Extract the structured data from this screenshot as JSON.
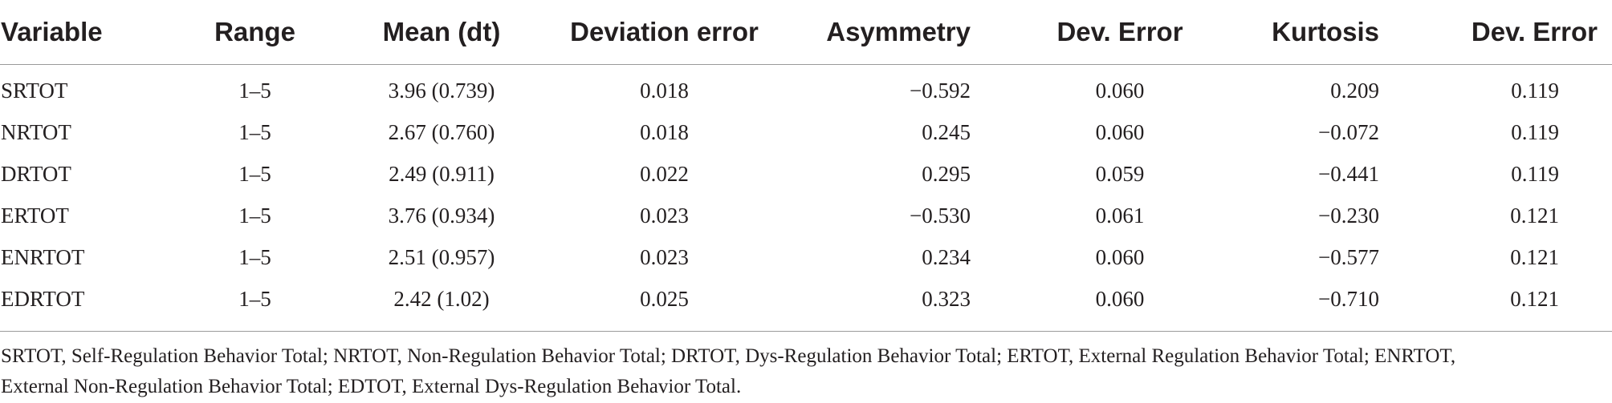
{
  "table": {
    "headers": {
      "variable": "Variable",
      "range": "Range",
      "mean": "Mean (dt)",
      "deviation_error": "Deviation error",
      "asymmetry": "Asymmetry",
      "dev_error_1": "Dev. Error",
      "kurtosis": "Kurtosis",
      "dev_error_2": "Dev. Error"
    },
    "rows": [
      {
        "variable": "SRTOT",
        "range": "1–5",
        "mean": "3.96 (0.739)",
        "deviation_error": "0.018",
        "asymmetry": "−0.592",
        "dev_error_1": "0.060",
        "kurtosis": "0.209",
        "dev_error_2": "0.119"
      },
      {
        "variable": "NRTOT",
        "range": "1–5",
        "mean": "2.67 (0.760)",
        "deviation_error": "0.018",
        "asymmetry": "0.245",
        "dev_error_1": "0.060",
        "kurtosis": "−0.072",
        "dev_error_2": "0.119"
      },
      {
        "variable": "DRTOT",
        "range": "1–5",
        "mean": "2.49 (0.911)",
        "deviation_error": "0.022",
        "asymmetry": "0.295",
        "dev_error_1": "0.059",
        "kurtosis": "−0.441",
        "dev_error_2": "0.119"
      },
      {
        "variable": "ERTOT",
        "range": "1–5",
        "mean": "3.76 (0.934)",
        "deviation_error": "0.023",
        "asymmetry": "−0.530",
        "dev_error_1": "0.061",
        "kurtosis": "−0.230",
        "dev_error_2": "0.121"
      },
      {
        "variable": "ENRTOT",
        "range": "1–5",
        "mean": "2.51 (0.957)",
        "deviation_error": "0.023",
        "asymmetry": "0.234",
        "dev_error_1": "0.060",
        "kurtosis": "−0.577",
        "dev_error_2": "0.121"
      },
      {
        "variable": "EDRTOT",
        "range": "1–5",
        "mean": "2.42 (1.02)",
        "deviation_error": "0.025",
        "asymmetry": "0.323",
        "dev_error_1": "0.060",
        "kurtosis": "−0.710",
        "dev_error_2": "0.121"
      }
    ]
  },
  "footnote": {
    "line1": "SRTOT, Self-Regulation Behavior Total; NRTOT, Non-Regulation Behavior Total; DRTOT, Dys-Regulation Behavior Total; ERTOT, External Regulation Behavior Total; ENRTOT,",
    "line2": "External Non-Regulation Behavior Total; EDTOT, External Dys-Regulation Behavior Total."
  },
  "colors": {
    "text": "#231f20",
    "rule": "#9a9a9a",
    "background": "#ffffff"
  }
}
